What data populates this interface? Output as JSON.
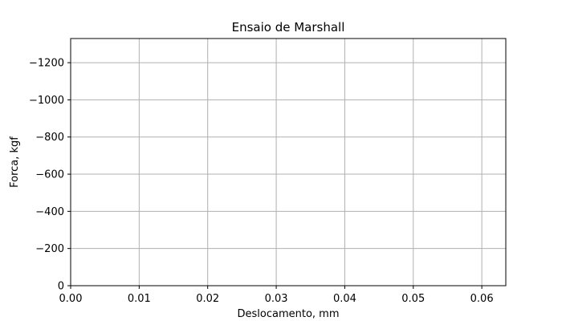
{
  "chart_data": {
    "type": "line",
    "title": "Ensaio de Marshall",
    "xlabel": "Deslocamento, mm",
    "ylabel": "Forca, kgf",
    "xlim": [
      0,
      0.0635
    ],
    "ylim": [
      0,
      -1330
    ],
    "x_ticks": [
      0.0,
      0.01,
      0.02,
      0.03,
      0.04,
      0.05,
      0.06
    ],
    "x_tick_labels": [
      "0.00",
      "0.01",
      "0.02",
      "0.03",
      "0.04",
      "0.05",
      "0.06"
    ],
    "y_ticks": [
      0,
      -200,
      -400,
      -600,
      -800,
      -1000,
      -1200
    ],
    "y_tick_labels": [
      "0",
      "−200",
      "−400",
      "−600",
      "−800",
      "−1000",
      "−1200"
    ],
    "grid": true,
    "series": []
  }
}
